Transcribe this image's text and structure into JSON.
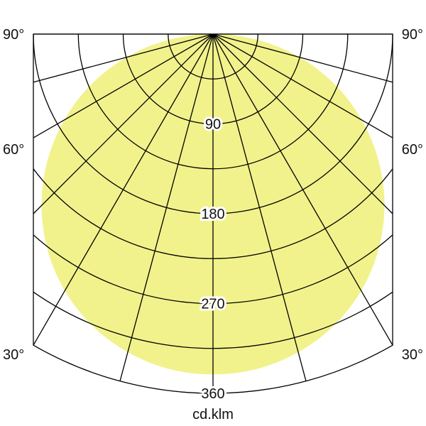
{
  "chart_data": {
    "type": "polar",
    "unit_label": "cd.klm",
    "radial_ticks": [
      90,
      180,
      270,
      360
    ],
    "radial_grid_step": 45,
    "radial_max": 360,
    "angle_grid_step_deg": 15,
    "angle_labels": [
      "90°",
      "60°",
      "30°"
    ],
    "angle_label_values": [
      90,
      60,
      30
    ],
    "series": [
      {
        "angles_deg": [
          0,
          15,
          30,
          45,
          60,
          75,
          90
        ],
        "values": [
          341,
          330,
          297,
          243,
          172,
          90,
          0
        ]
      }
    ],
    "colors": {
      "fill": "#f1f28b",
      "grid": "#000000"
    },
    "grid": true
  }
}
